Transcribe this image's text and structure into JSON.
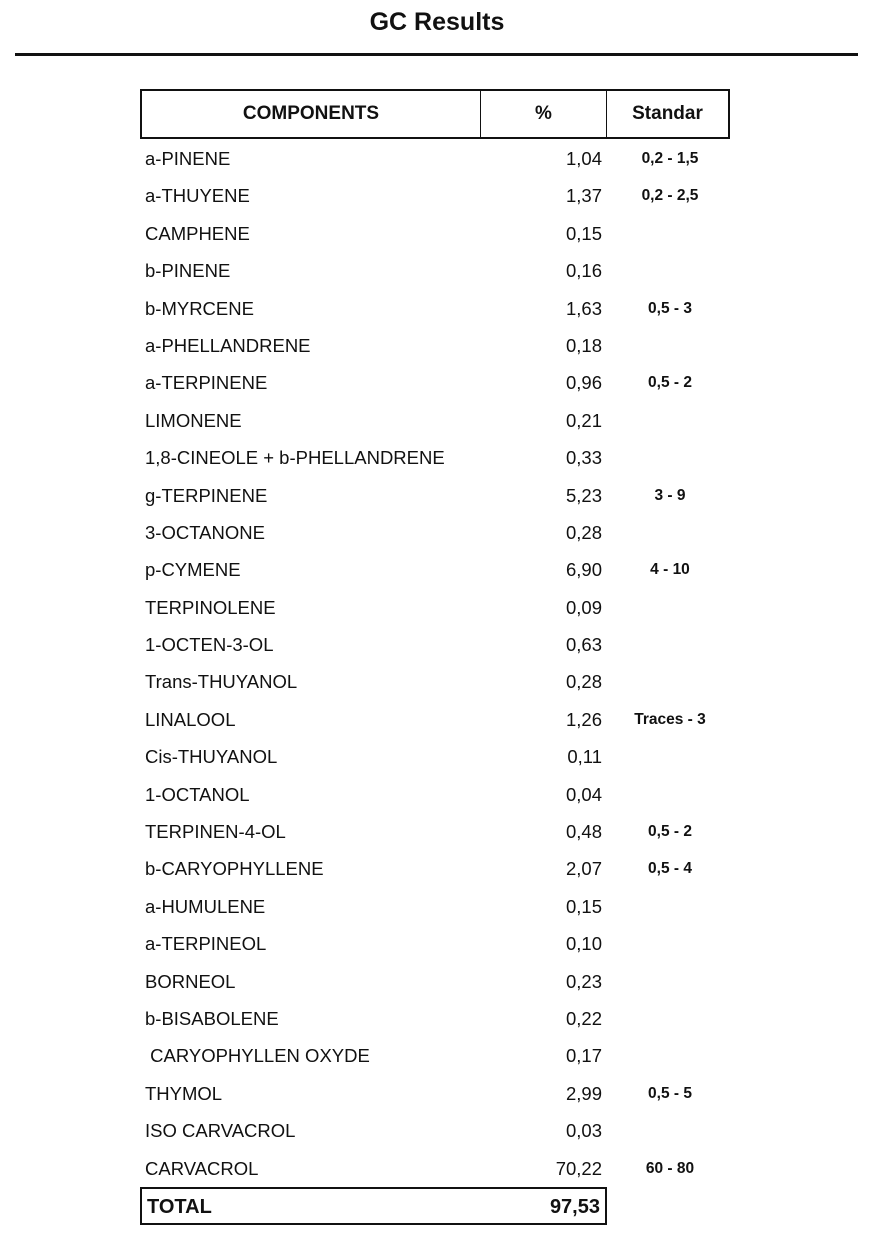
{
  "title": "GC Results",
  "table": {
    "headers": {
      "component": "COMPONENTS",
      "percent": "%",
      "standard": "Standar"
    },
    "rows": [
      {
        "name": "a-PINENE",
        "percent": "1,04",
        "standard": "0,2 - 1,5"
      },
      {
        "name": "a-THUYENE",
        "percent": "1,37",
        "standard": "0,2 - 2,5"
      },
      {
        "name": "CAMPHENE",
        "percent": "0,15",
        "standard": ""
      },
      {
        "name": "b-PINENE",
        "percent": "0,16",
        "standard": ""
      },
      {
        "name": "b-MYRCENE",
        "percent": "1,63",
        "standard": "0,5 - 3"
      },
      {
        "name": "a-PHELLANDRENE",
        "percent": "0,18",
        "standard": ""
      },
      {
        "name": "a-TERPINENE",
        "percent": "0,96",
        "standard": "0,5 - 2"
      },
      {
        "name": "LIMONENE",
        "percent": "0,21",
        "standard": ""
      },
      {
        "name": "1,8-CINEOLE + b-PHELLANDRENE",
        "percent": "0,33",
        "standard": ""
      },
      {
        "name": "g-TERPINENE",
        "percent": "5,23",
        "standard": "3 - 9"
      },
      {
        "name": "3-OCTANONE",
        "percent": "0,28",
        "standard": ""
      },
      {
        "name": "p-CYMENE",
        "percent": "6,90",
        "standard": "4 - 10"
      },
      {
        "name": "TERPINOLENE",
        "percent": "0,09",
        "standard": ""
      },
      {
        "name": "1-OCTEN-3-OL",
        "percent": "0,63",
        "standard": ""
      },
      {
        "name": "Trans-THUYANOL",
        "percent": "0,28",
        "standard": ""
      },
      {
        "name": "LINALOOL",
        "percent": "1,26",
        "standard": "Traces - 3"
      },
      {
        "name": "Cis-THUYANOL",
        "percent": "0,11",
        "standard": ""
      },
      {
        "name": "1-OCTANOL",
        "percent": "0,04",
        "standard": ""
      },
      {
        "name": "TERPINEN-4-OL",
        "percent": "0,48",
        "standard": "0,5 - 2"
      },
      {
        "name": "b-CARYOPHYLLENE",
        "percent": "2,07",
        "standard": "0,5 - 4"
      },
      {
        "name": "a-HUMULENE",
        "percent": "0,15",
        "standard": ""
      },
      {
        "name": "a-TERPINEOL",
        "percent": "0,10",
        "standard": ""
      },
      {
        "name": "BORNEOL",
        "percent": "0,23",
        "standard": ""
      },
      {
        "name": "b-BISABOLENE",
        "percent": "0,22",
        "standard": ""
      },
      {
        "name": " CARYOPHYLLEN OXYDE",
        "percent": "0,17",
        "standard": ""
      },
      {
        "name": "THYMOL",
        "percent": "2,99",
        "standard": "0,5 - 5"
      },
      {
        "name": "ISO CARVACROL",
        "percent": "0,03",
        "standard": ""
      },
      {
        "name": "CARVACROL",
        "percent": "70,22",
        "standard": "60 - 80"
      }
    ],
    "total": {
      "label": "TOTAL",
      "value": "97,53"
    }
  }
}
